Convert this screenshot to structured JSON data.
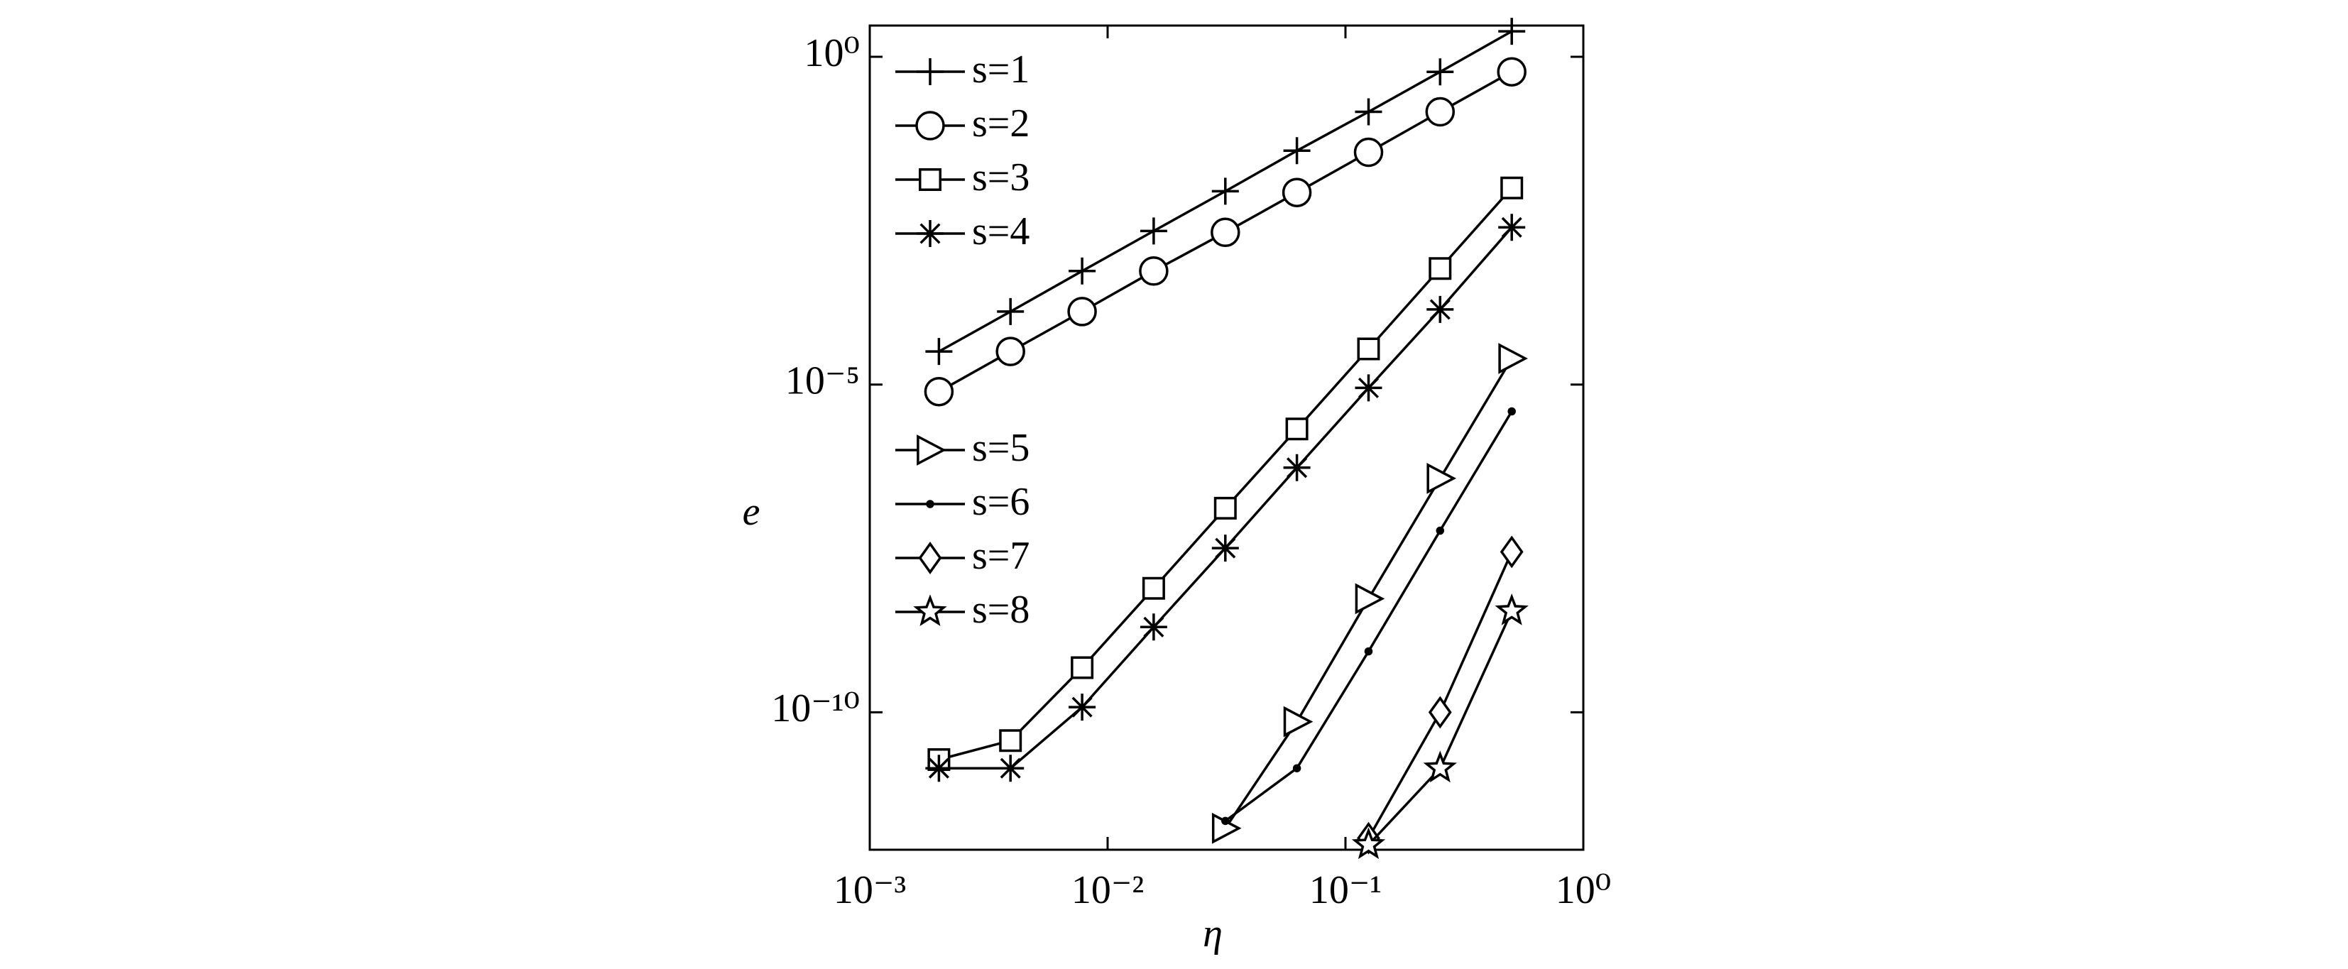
{
  "chart_data": {
    "type": "line",
    "x_label": "η",
    "y_label": "e",
    "x": [
      0.001953125,
      0.00390625,
      0.0078125,
      0.015625,
      0.03125,
      0.0625,
      0.125,
      0.25,
      0.5
    ],
    "xlog": true,
    "ylog": true,
    "xlim": [
      0.001,
      1
    ],
    "ylim": [
      8e-13,
      3
    ],
    "xticks": [
      {
        "value": 0.001,
        "label": "10⁻³"
      },
      {
        "value": 0.01,
        "label": "10⁻²"
      },
      {
        "value": 0.1,
        "label": "10⁻¹"
      },
      {
        "value": 1,
        "label": "10⁰"
      }
    ],
    "yticks": [
      {
        "value": 1e-10,
        "label": "10⁻¹⁰"
      },
      {
        "value": 1e-05,
        "label": "10⁻⁵"
      },
      {
        "value": 1,
        "label": "10⁰"
      }
    ],
    "grid": false,
    "legend": "upper left",
    "series": [
      {
        "name": "s=1",
        "color": "#000000",
        "marker": "plus",
        "values": [
          3.2e-05,
          0.00013,
          0.00054,
          0.0022,
          0.0089,
          0.037,
          0.145,
          0.59,
          2.45
        ]
      },
      {
        "name": "s=2",
        "color": "#000000",
        "marker": "circle",
        "values": [
          7.8e-06,
          3.2e-05,
          0.00013,
          0.00054,
          0.0021,
          0.0085,
          0.035,
          0.145,
          0.59
        ]
      },
      {
        "name": "s=3",
        "color": "#000000",
        "marker": "square",
        "values": [
          1.9e-11,
          3.7e-11,
          4.8e-10,
          7.8e-09,
          1.3e-07,
          2.1e-06,
          3.5e-05,
          0.00059,
          0.01
        ]
      },
      {
        "name": "s=4",
        "color": "#000000",
        "marker": "asterisk",
        "values": [
          1.4e-11,
          1.4e-11,
          1.2e-10,
          2e-09,
          3.2e-08,
          5.4e-07,
          8.9e-06,
          0.00014,
          0.0025
        ]
      },
      {
        "name": "s=5",
        "color": "#000000",
        "marker": "triangle-right",
        "values": [
          null,
          null,
          null,
          null,
          1.7e-12,
          7.2e-11,
          5.4e-09,
          3.7e-07,
          2.5e-05
        ]
      },
      {
        "name": "s=6",
        "color": "#000000",
        "marker": "dot",
        "values": [
          null,
          null,
          null,
          null,
          2.2e-12,
          1.4e-11,
          8.5e-10,
          5.9e-08,
          3.9e-06
        ]
      },
      {
        "name": "s=7",
        "color": "#000000",
        "marker": "diamond",
        "values": [
          null,
          null,
          null,
          null,
          null,
          null,
          1.2e-12,
          1e-10,
          2.8e-08
        ]
      },
      {
        "name": "s=8",
        "color": "#000000",
        "marker": "star",
        "values": [
          null,
          null,
          null,
          null,
          null,
          null,
          9.5e-13,
          1.4e-11,
          3.5e-09
        ]
      }
    ]
  }
}
